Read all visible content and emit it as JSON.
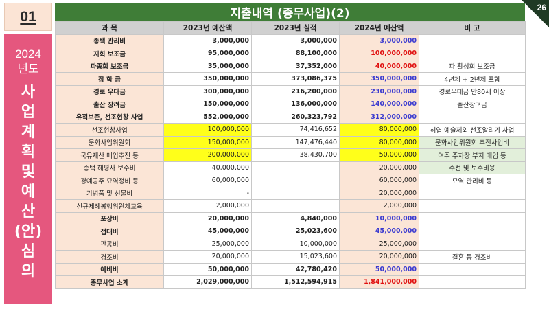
{
  "section_number": "01",
  "page_number": "26",
  "title": "지출내역 (종무사업)(2)",
  "side_panel": {
    "year": "2024",
    "sub": "년도",
    "vertical": [
      "사",
      "업",
      "계",
      "획",
      "및",
      "예",
      "산",
      "(안)",
      "심",
      "의"
    ]
  },
  "headers": [
    "과 목",
    "2023년 예산액",
    "2023년 실적",
    "2024년 예산액",
    "비 고"
  ],
  "rows": [
    {
      "cat": "종택 관리비",
      "b2023": "3,000,000",
      "a2023": "3,000,000",
      "b2024": "3,000,000",
      "c2024": "blue",
      "note": "",
      "bold": true
    },
    {
      "cat": "지회 보조금",
      "b2023": "95,000,000",
      "a2023": "88,100,000",
      "b2024": "100,000,000",
      "c2024": "red",
      "note": "",
      "bold": true
    },
    {
      "cat": "파종회 보조금",
      "b2023": "35,000,000",
      "a2023": "37,352,000",
      "b2024": "40,000,000",
      "c2024": "red",
      "note": "파 활성회 보조금",
      "bold": true
    },
    {
      "cat": "장 학 금",
      "b2023": "350,000,000",
      "a2023": "373,086,375",
      "b2024": "350,000,000",
      "c2024": "blue",
      "note": "4년제 + 2년제 포함",
      "bold": true
    },
    {
      "cat": "경로 우대금",
      "b2023": "300,000,000",
      "a2023": "216,200,000",
      "b2024": "230,000,000",
      "c2024": "blue",
      "note": "경로우대금 만80세 이상",
      "bold": true
    },
    {
      "cat": "출산 장려금",
      "b2023": "150,000,000",
      "a2023": "136,000,000",
      "b2024": "140,000,000",
      "c2024": "blue",
      "note": "출산장려금",
      "bold": true
    },
    {
      "cat": "유적보존, 선조현창 사업",
      "b2023": "552,000,000",
      "a2023": "260,323,792",
      "b2024": "312,000,000",
      "c2024": "blue",
      "note": "",
      "bold": true
    },
    {
      "cat": "선조현창사업",
      "b2023": "100,000,000",
      "a2023": "74,416,652",
      "b2024": "80,000,000",
      "c2024": "black",
      "note": "허엽 예술제외 선조알리기 사업",
      "bold": false,
      "hl": true
    },
    {
      "cat": "문화사업위원회",
      "b2023": "150,000,000",
      "a2023": "147,476,440",
      "b2024": "80,000,000",
      "c2024": "black",
      "note": "문화사업위원회 추진사업비",
      "bold": false,
      "hl": true,
      "green": true
    },
    {
      "cat": "국유재산 매입추진 등",
      "b2023": "200,000,000",
      "a2023": "38,430,700",
      "b2024": "50,000,000",
      "c2024": "black",
      "note": "여주 주차장 부지 매입 등",
      "bold": false,
      "hl": true,
      "green": true
    },
    {
      "cat": "종택 해평사 보수비",
      "b2023": "40,000,000",
      "a2023": "",
      "b2024": "20,000,000",
      "c2024": "black",
      "note": "수선 및 보수비용",
      "bold": false,
      "green": true
    },
    {
      "cat": "경예공주 묘역정비 등",
      "b2023": "60,000,000",
      "a2023": "",
      "b2024": "60,000,000",
      "c2024": "black",
      "note": "묘역 관리비 등",
      "bold": false
    },
    {
      "cat": "기념품 및 선물비",
      "b2023": "-",
      "a2023": "",
      "b2024": "20,000,000",
      "c2024": "black",
      "note": "",
      "bold": false
    },
    {
      "cat": "신규제례봉행위원체교육",
      "b2023": "2,000,000",
      "a2023": "",
      "b2024": "2,000,000",
      "c2024": "black",
      "note": "",
      "bold": false
    },
    {
      "cat": "포상비",
      "b2023": "20,000,000",
      "a2023": "4,840,000",
      "b2024": "10,000,000",
      "c2024": "blue",
      "note": "",
      "bold": true
    },
    {
      "cat": "접대비",
      "b2023": "45,000,000",
      "a2023": "25,023,600",
      "b2024": "45,000,000",
      "c2024": "blue",
      "note": "",
      "bold": true
    },
    {
      "cat": "판공비",
      "b2023": "25,000,000",
      "a2023": "10,000,000",
      "b2024": "25,000,000",
      "c2024": "black",
      "note": "",
      "bold": false
    },
    {
      "cat": "경조비",
      "b2023": "20,000,000",
      "a2023": "15,023,600",
      "b2024": "20,000,000",
      "c2024": "black",
      "note": "결혼 등 경조비",
      "bold": false
    },
    {
      "cat": "예비비",
      "b2023": "50,000,000",
      "a2023": "42,780,420",
      "b2024": "50,000,000",
      "c2024": "blue",
      "note": "",
      "bold": true
    },
    {
      "cat": "종무사업 소계",
      "b2023": "2,029,000,000",
      "a2023": "1,512,594,915",
      "b2024": "1,841,000,000",
      "c2024": "red",
      "note": "",
      "bold": true,
      "total": true
    }
  ]
}
